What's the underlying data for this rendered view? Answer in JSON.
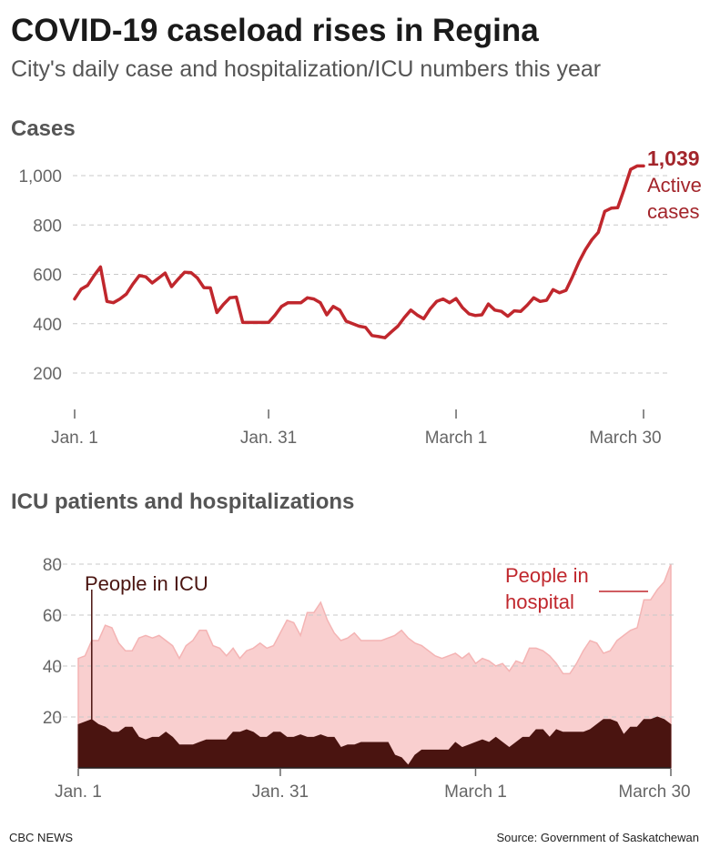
{
  "header": {
    "title": "COVID-19 caseload rises in Regina",
    "subtitle": "City's daily case and hospitalization/ICU numbers this year"
  },
  "footer": {
    "credit": "CBC NEWS",
    "source": "Source: Government of Saskatchewan"
  },
  "colors": {
    "cases_line": "#c0272d",
    "cases_label": "#a3252b",
    "hospital_fill": "#f9cfcf",
    "hospital_line": "#f4b4b4",
    "icu_fill": "#4a1410",
    "grid": "#c8c8c8",
    "axis_text": "#666666"
  },
  "chart_data": [
    {
      "type": "line",
      "title": "Cases",
      "xlabel": "",
      "ylabel": "",
      "x_ticks": [
        {
          "day": 1,
          "label": "Jan. 1"
        },
        {
          "day": 31,
          "label": "Jan. 31"
        },
        {
          "day": 60,
          "label": "March 1"
        },
        {
          "day": 89,
          "label": "March 30"
        }
      ],
      "y_ticks": [
        200,
        400,
        600,
        800,
        1000
      ],
      "y_tick_labels": [
        "200",
        "400",
        "600",
        "800",
        "1,000"
      ],
      "xlim": [
        1,
        89
      ],
      "ylim": [
        100,
        1100
      ],
      "grid": true,
      "annotation": {
        "value": "1,039",
        "text_line1": "Active",
        "text_line2": "cases"
      },
      "series": [
        {
          "name": "Active cases",
          "x": [
            1,
            2,
            3,
            4,
            5,
            6,
            7,
            8,
            9,
            10,
            11,
            12,
            13,
            14,
            15,
            16,
            17,
            18,
            19,
            20,
            21,
            22,
            23,
            24,
            25,
            26,
            27,
            28,
            29,
            30,
            31,
            32,
            33,
            34,
            35,
            36,
            37,
            38,
            39,
            40,
            41,
            42,
            43,
            44,
            45,
            46,
            47,
            48,
            49,
            50,
            51,
            52,
            53,
            54,
            55,
            56,
            57,
            58,
            59,
            60,
            61,
            62,
            63,
            64,
            65,
            66,
            67,
            68,
            69,
            70,
            71,
            72,
            73,
            74,
            75,
            76,
            77,
            78,
            79,
            80,
            81,
            82,
            83,
            84,
            85,
            86,
            87,
            88,
            89
          ],
          "values": [
            500,
            540,
            555,
            595,
            630,
            490,
            485,
            500,
            520,
            560,
            595,
            590,
            565,
            585,
            605,
            550,
            580,
            608,
            607,
            585,
            546,
            545,
            445,
            478,
            505,
            508,
            405,
            405,
            405,
            405,
            405,
            435,
            470,
            485,
            485,
            485,
            505,
            500,
            485,
            436,
            470,
            455,
            410,
            400,
            390,
            385,
            352,
            348,
            343,
            367,
            390,
            425,
            455,
            435,
            420,
            460,
            490,
            500,
            485,
            502,
            465,
            440,
            433,
            436,
            480,
            455,
            450,
            430,
            452,
            450,
            475,
            505,
            490,
            495,
            538,
            525,
            535,
            590,
            650,
            700,
            740,
            770,
            855,
            868,
            870,
            945,
            1025,
            1039,
            1039
          ]
        }
      ]
    },
    {
      "type": "area",
      "title": "ICU patients and hospitalizations",
      "xlabel": "",
      "ylabel": "",
      "x_ticks": [
        {
          "day": 1,
          "label": "Jan. 1"
        },
        {
          "day": 31,
          "label": "Jan. 31"
        },
        {
          "day": 60,
          "label": "March 1"
        },
        {
          "day": 89,
          "label": "March 30"
        }
      ],
      "y_ticks": [
        20,
        40,
        60,
        80
      ],
      "y_tick_labels": [
        "20",
        "40",
        "60",
        "80"
      ],
      "xlim": [
        1,
        89
      ],
      "ylim": [
        0,
        80
      ],
      "grid": true,
      "series": [
        {
          "name": "People in hospital",
          "x": [
            1,
            2,
            3,
            4,
            5,
            6,
            7,
            8,
            9,
            10,
            11,
            12,
            13,
            14,
            15,
            16,
            17,
            18,
            19,
            20,
            21,
            22,
            23,
            24,
            25,
            26,
            27,
            28,
            29,
            30,
            31,
            32,
            33,
            34,
            35,
            36,
            37,
            38,
            39,
            40,
            41,
            42,
            43,
            44,
            45,
            46,
            47,
            48,
            49,
            50,
            51,
            52,
            53,
            54,
            55,
            56,
            57,
            58,
            59,
            60,
            61,
            62,
            63,
            64,
            65,
            66,
            67,
            68,
            69,
            70,
            71,
            72,
            73,
            74,
            75,
            76,
            77,
            78,
            79,
            80,
            81,
            82,
            83,
            84,
            85,
            86,
            87,
            88,
            89
          ],
          "values": [
            43,
            44,
            50,
            50,
            56,
            55,
            49,
            46,
            46,
            51,
            52,
            51,
            52,
            50,
            48,
            43,
            48,
            50,
            54,
            54,
            48,
            47,
            44,
            47,
            43,
            46,
            47,
            49,
            47,
            48,
            53,
            58,
            57,
            52,
            61,
            61,
            65,
            58,
            53,
            50,
            51,
            53,
            50,
            50,
            50,
            50,
            51,
            52,
            54,
            51,
            49,
            48,
            46,
            44,
            43,
            44,
            45,
            43,
            45,
            41,
            43,
            42,
            40,
            41,
            38,
            42,
            41,
            47,
            47,
            46,
            44,
            41,
            37,
            37,
            41,
            46,
            50,
            49,
            45,
            46,
            50,
            52,
            54,
            55,
            66,
            66,
            70,
            73,
            80
          ]
        },
        {
          "name": "People in ICU",
          "x": [
            1,
            2,
            3,
            4,
            5,
            6,
            7,
            8,
            9,
            10,
            11,
            12,
            13,
            14,
            15,
            16,
            17,
            18,
            19,
            20,
            21,
            22,
            23,
            24,
            25,
            26,
            27,
            28,
            29,
            30,
            31,
            32,
            33,
            34,
            35,
            36,
            37,
            38,
            39,
            40,
            41,
            42,
            43,
            44,
            45,
            46,
            47,
            48,
            49,
            50,
            51,
            52,
            53,
            54,
            55,
            56,
            57,
            58,
            59,
            60,
            61,
            62,
            63,
            64,
            65,
            66,
            67,
            68,
            69,
            70,
            71,
            72,
            73,
            74,
            75,
            76,
            77,
            78,
            79,
            80,
            81,
            82,
            83,
            84,
            85,
            86,
            87,
            88,
            89
          ],
          "values": [
            17,
            18,
            19,
            17,
            16,
            14,
            14,
            16,
            16,
            12,
            11,
            12,
            12,
            14,
            12,
            9,
            9,
            9,
            10,
            11,
            11,
            11,
            11,
            14,
            14,
            15,
            14,
            12,
            12,
            14,
            14,
            12,
            12,
            13,
            12,
            12,
            13,
            12,
            12,
            8,
            9,
            9,
            10,
            10,
            10,
            10,
            10,
            5,
            4,
            1,
            5,
            7,
            7,
            7,
            7,
            7,
            10,
            8,
            9,
            10,
            11,
            10,
            12,
            10,
            8,
            10,
            12,
            12,
            15,
            15,
            12,
            15,
            14,
            14,
            14,
            14,
            15,
            17,
            19,
            19,
            18,
            13,
            16,
            16,
            19,
            19,
            20,
            19,
            17
          ]
        }
      ]
    }
  ]
}
